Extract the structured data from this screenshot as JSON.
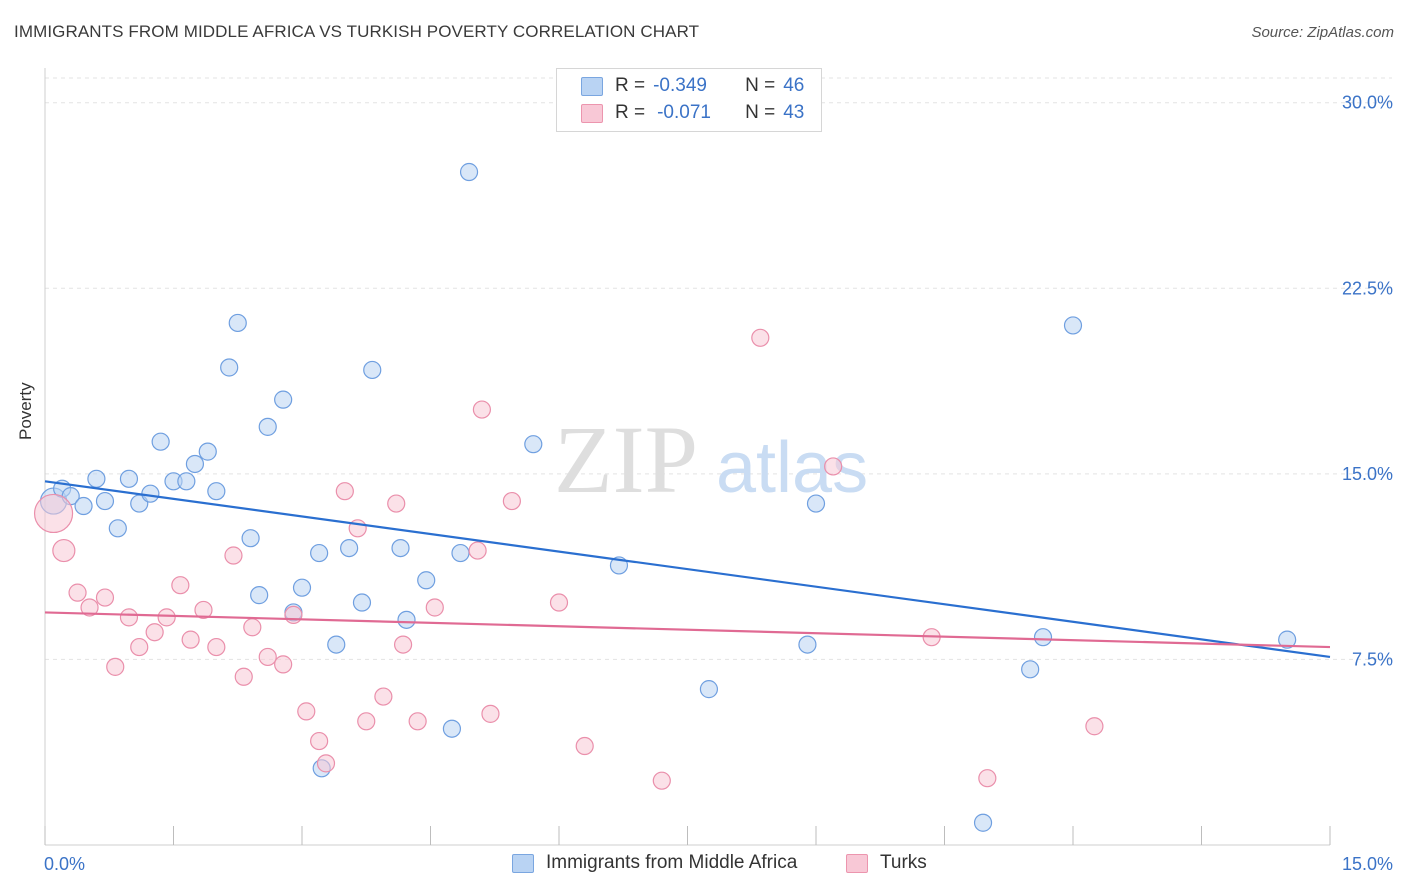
{
  "header": {
    "title": "IMMIGRANTS FROM MIDDLE AFRICA VS TURKISH POVERTY CORRELATION CHART",
    "source": "Source: ZipAtlas.com"
  },
  "watermark": {
    "zip": "ZIP",
    "atlas": "atlas"
  },
  "legend": {
    "rows": [
      {
        "r_label": "R =",
        "r_value": "-0.349",
        "n_label": "N =",
        "n_value": "46",
        "color": "#a9c8f0",
        "border": "#7aa6e0"
      },
      {
        "r_label": "R =",
        "r_value": "-0.071",
        "n_label": "N =",
        "n_value": "43",
        "color": "#f7c0d0",
        "border": "#ec95ae"
      }
    ]
  },
  "bottom_legend": [
    {
      "label": "Immigrants from Middle Africa",
      "color": "#a9c8f0",
      "border": "#7aa6e0"
    },
    {
      "label": "Turks",
      "color": "#f7c0d0",
      "border": "#ec95ae"
    }
  ],
  "chart_data": {
    "type": "scatter",
    "title": "IMMIGRANTS FROM MIDDLE AFRICA VS TURKISH POVERTY CORRELATION CHART",
    "xlabel": "",
    "ylabel": "Poverty",
    "xlim": [
      0,
      15
    ],
    "ylim": [
      0,
      31
    ],
    "x_tick_labels": [
      "0.0%",
      "15.0%"
    ],
    "y_ticks": [
      7.5,
      15.0,
      22.5,
      30.0
    ],
    "y_tick_labels": [
      "7.5%",
      "15.0%",
      "22.5%",
      "30.0%"
    ],
    "grid": true,
    "legend_position": "top-center",
    "series": [
      {
        "name": "Immigrants from Middle Africa",
        "color": "#6f9fe0",
        "fill": "#b9d3f3",
        "trend": {
          "x0": 0,
          "y0": 14.7,
          "x1": 15,
          "y1": 7.6,
          "color": "#2a6fd0"
        },
        "points": [
          [
            0.1,
            13.9
          ],
          [
            0.2,
            14.4
          ],
          [
            0.3,
            14.1
          ],
          [
            0.45,
            13.7
          ],
          [
            0.6,
            14.8
          ],
          [
            0.7,
            13.9
          ],
          [
            0.85,
            12.8
          ],
          [
            0.98,
            14.8
          ],
          [
            1.1,
            13.8
          ],
          [
            1.23,
            14.2
          ],
          [
            1.35,
            16.3
          ],
          [
            1.5,
            14.7
          ],
          [
            1.65,
            14.7
          ],
          [
            1.75,
            15.4
          ],
          [
            1.9,
            15.9
          ],
          [
            2.0,
            14.3
          ],
          [
            2.15,
            19.3
          ],
          [
            2.25,
            21.1
          ],
          [
            2.4,
            12.4
          ],
          [
            2.5,
            10.1
          ],
          [
            2.6,
            16.9
          ],
          [
            2.78,
            18.0
          ],
          [
            2.9,
            9.4
          ],
          [
            3.0,
            10.4
          ],
          [
            3.2,
            11.8
          ],
          [
            3.4,
            8.1
          ],
          [
            3.55,
            12.0
          ],
          [
            3.7,
            9.8
          ],
          [
            3.82,
            19.2
          ],
          [
            4.15,
            12.0
          ],
          [
            4.22,
            9.1
          ],
          [
            4.45,
            10.7
          ],
          [
            4.75,
            4.7
          ],
          [
            4.85,
            11.8
          ],
          [
            4.95,
            27.2
          ],
          [
            3.23,
            3.1
          ],
          [
            5.7,
            16.2
          ],
          [
            6.7,
            11.3
          ],
          [
            7.75,
            6.3
          ],
          [
            8.9,
            8.1
          ],
          [
            9.0,
            13.8
          ],
          [
            10.95,
            0.9
          ],
          [
            11.5,
            7.1
          ],
          [
            11.65,
            8.4
          ],
          [
            12.0,
            21.0
          ],
          [
            14.5,
            8.3
          ]
        ]
      },
      {
        "name": "Turks",
        "color": "#ea8fab",
        "fill": "#f8c8d6",
        "trend": {
          "x0": 0,
          "y0": 9.4,
          "x1": 15,
          "y1": 8.0,
          "color": "#e06a93"
        },
        "points": [
          [
            0.1,
            13.4
          ],
          [
            0.22,
            11.9
          ],
          [
            0.38,
            10.2
          ],
          [
            0.52,
            9.6
          ],
          [
            0.7,
            10.0
          ],
          [
            0.82,
            7.2
          ],
          [
            0.98,
            9.2
          ],
          [
            1.1,
            8.0
          ],
          [
            1.28,
            8.6
          ],
          [
            1.42,
            9.2
          ],
          [
            1.58,
            10.5
          ],
          [
            1.7,
            8.3
          ],
          [
            1.85,
            9.5
          ],
          [
            2.0,
            8.0
          ],
          [
            2.2,
            11.7
          ],
          [
            2.32,
            6.8
          ],
          [
            2.42,
            8.8
          ],
          [
            2.6,
            7.6
          ],
          [
            2.78,
            7.3
          ],
          [
            2.9,
            9.3
          ],
          [
            3.05,
            5.4
          ],
          [
            3.2,
            4.2
          ],
          [
            3.28,
            3.3
          ],
          [
            3.5,
            14.3
          ],
          [
            3.65,
            12.8
          ],
          [
            3.75,
            5.0
          ],
          [
            3.95,
            6.0
          ],
          [
            4.1,
            13.8
          ],
          [
            4.18,
            8.1
          ],
          [
            4.35,
            5.0
          ],
          [
            4.55,
            9.6
          ],
          [
            5.05,
            11.9
          ],
          [
            5.1,
            17.6
          ],
          [
            5.2,
            5.3
          ],
          [
            5.45,
            13.9
          ],
          [
            6.0,
            9.8
          ],
          [
            6.3,
            4.0
          ],
          [
            7.2,
            2.6
          ],
          [
            8.35,
            20.5
          ],
          [
            9.2,
            15.3
          ],
          [
            10.35,
            8.4
          ],
          [
            11.0,
            2.7
          ],
          [
            12.25,
            4.8
          ]
        ]
      }
    ]
  }
}
